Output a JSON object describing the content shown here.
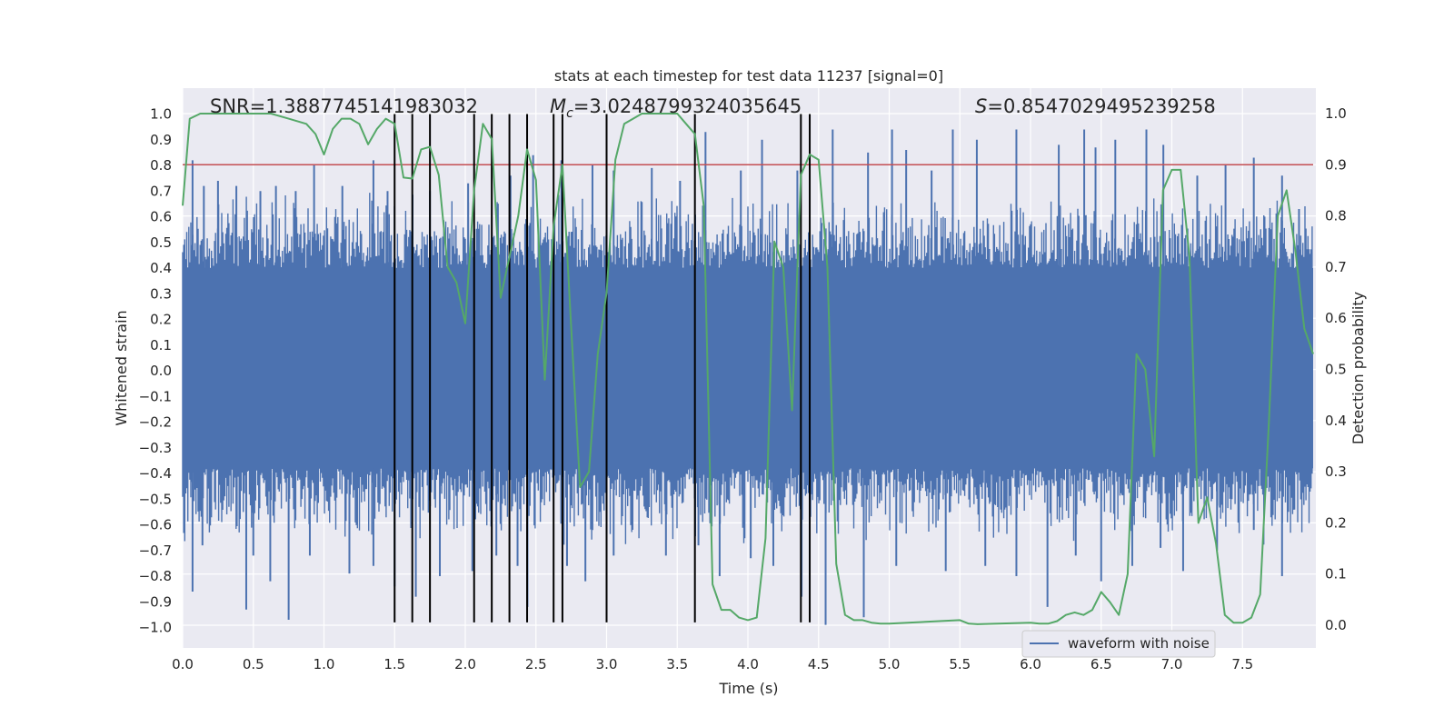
{
  "chart_data": {
    "type": "line",
    "title": "stats at each timestep for test data 11237 [signal=0]",
    "xlabel": "Time (s)",
    "ylabel": "Whitened strain",
    "y2label": "Detection probability",
    "xlim": [
      0.0,
      8.0
    ],
    "ylim": [
      -1.08,
      1.1
    ],
    "y2lim": [
      -0.048,
      1.048
    ],
    "x_ticks": [
      0.0,
      0.5,
      1.0,
      1.5,
      2.0,
      2.5,
      3.0,
      3.5,
      4.0,
      4.5,
      5.0,
      5.5,
      6.0,
      6.5,
      7.0,
      7.5
    ],
    "x_tick_labels": [
      "0.0",
      "0.5",
      "1.0",
      "1.5",
      "2.0",
      "2.5",
      "3.0",
      "3.5",
      "4.0",
      "4.5",
      "5.0",
      "5.5",
      "6.0",
      "6.5",
      "7.0",
      "7.5"
    ],
    "y_ticks": [
      1.0,
      0.9,
      0.8,
      0.7,
      0.6,
      0.5,
      0.4,
      0.3,
      0.2,
      0.1,
      0.0,
      -0.1,
      -0.2,
      -0.3,
      -0.4,
      -0.5,
      -0.6,
      -0.7,
      -0.8,
      -0.9,
      -1.0
    ],
    "y_tick_labels": [
      "1.0",
      "0.9",
      "0.8",
      "0.7",
      "0.6",
      "0.5",
      "0.4",
      "0.3",
      "0.2",
      "0.1",
      "0.0",
      "−0.1",
      "−0.2",
      "−0.3",
      "−0.4",
      "−0.5",
      "−0.6",
      "−0.7",
      "−0.8",
      "−0.9",
      "−1.0"
    ],
    "y2_ticks": [
      1.0,
      0.9,
      0.8,
      0.7,
      0.6,
      0.5,
      0.4,
      0.3,
      0.2,
      0.1,
      0.0
    ],
    "y2_tick_labels": [
      "1.0",
      "0.9",
      "0.8",
      "0.7",
      "0.6",
      "0.5",
      "0.4",
      "0.3",
      "0.2",
      "0.1",
      "0.0"
    ],
    "annotations": {
      "snr": "SNR=1.3887745141983032",
      "mc_symbol": "M",
      "mc_sub": "c",
      "mc_value": "=3.0248799324035645",
      "s_symbol": "S",
      "s_value": "=0.8547029495239258"
    },
    "threshold": {
      "y2": 0.9,
      "color": "#c44e52"
    },
    "vertical_lines": {
      "x": [
        1.5,
        1.625,
        1.75,
        2.0625,
        2.1875,
        2.3125,
        2.4375,
        2.625,
        2.6875,
        3.0,
        3.625,
        4.375,
        4.4375
      ],
      "ymin": -0.98,
      "ymax": 1.0,
      "color": "#000000"
    },
    "noise": {
      "name": "waveform with noise",
      "color": "#4c72b0",
      "core_lo": -0.38,
      "core_hi": 0.4,
      "samples": 1100,
      "spikes_up": [
        [
          0.07,
          0.82
        ],
        [
          0.15,
          0.72
        ],
        [
          0.25,
          0.74
        ],
        [
          0.38,
          0.72
        ],
        [
          0.55,
          0.7
        ],
        [
          0.66,
          0.72
        ],
        [
          0.8,
          0.7
        ],
        [
          0.93,
          0.8
        ],
        [
          1.13,
          0.72
        ],
        [
          1.35,
          0.82
        ],
        [
          1.45,
          0.7
        ],
        [
          1.75,
          0.7
        ],
        [
          2.02,
          0.73
        ],
        [
          2.32,
          0.76
        ],
        [
          2.48,
          0.84
        ],
        [
          2.68,
          0.82
        ],
        [
          2.9,
          0.8
        ],
        [
          3.05,
          0.78
        ],
        [
          3.32,
          0.79
        ],
        [
          3.52,
          0.74
        ],
        [
          3.7,
          0.93
        ],
        [
          3.95,
          0.78
        ],
        [
          4.1,
          0.9
        ],
        [
          4.35,
          0.78
        ],
        [
          4.6,
          0.94
        ],
        [
          4.85,
          0.85
        ],
        [
          5.02,
          0.94
        ],
        [
          5.12,
          0.86
        ],
        [
          5.3,
          0.78
        ],
        [
          5.45,
          0.94
        ],
        [
          5.62,
          0.9
        ],
        [
          5.9,
          0.94
        ],
        [
          6.2,
          0.88
        ],
        [
          6.38,
          0.94
        ],
        [
          6.46,
          0.87
        ],
        [
          6.6,
          0.9
        ],
        [
          6.82,
          0.94
        ],
        [
          6.94,
          0.88
        ],
        [
          7.18,
          0.76
        ],
        [
          7.38,
          0.8
        ],
        [
          7.58,
          0.83
        ],
        [
          7.78,
          0.76
        ],
        [
          7.9,
          0.63
        ]
      ],
      "spikes_down": [
        [
          0.07,
          -0.86
        ],
        [
          0.14,
          -0.68
        ],
        [
          0.45,
          -0.93
        ],
        [
          0.5,
          -0.72
        ],
        [
          0.62,
          -0.82
        ],
        [
          0.75,
          -0.97
        ],
        [
          0.9,
          -0.72
        ],
        [
          1.18,
          -0.79
        ],
        [
          1.35,
          -0.76
        ],
        [
          1.5,
          -0.84
        ],
        [
          1.65,
          -0.88
        ],
        [
          1.82,
          -0.8
        ],
        [
          2.05,
          -0.78
        ],
        [
          2.22,
          -0.72
        ],
        [
          2.37,
          -0.76
        ],
        [
          2.44,
          -0.92
        ],
        [
          2.72,
          -0.76
        ],
        [
          2.85,
          -0.82
        ],
        [
          3.05,
          -0.72
        ],
        [
          3.42,
          -0.72
        ],
        [
          3.65,
          -0.68
        ],
        [
          3.8,
          -0.8
        ],
        [
          4.02,
          -0.73
        ],
        [
          4.18,
          -0.76
        ],
        [
          4.38,
          -0.88
        ],
        [
          4.55,
          -0.99
        ],
        [
          4.82,
          -0.96
        ],
        [
          5.05,
          -0.76
        ],
        [
          5.4,
          -0.78
        ],
        [
          5.68,
          -0.76
        ],
        [
          5.9,
          -0.8
        ],
        [
          6.12,
          -0.92
        ],
        [
          6.32,
          -0.72
        ],
        [
          6.5,
          -0.82
        ],
        [
          6.72,
          -0.76
        ],
        [
          6.92,
          -0.69
        ],
        [
          7.08,
          -0.78
        ],
        [
          7.32,
          -0.7
        ],
        [
          7.58,
          -0.62
        ],
        [
          7.78,
          -0.8
        ]
      ]
    },
    "probability": {
      "name": "detection probability",
      "color": "#55a868",
      "points": [
        [
          0.0,
          0.82
        ],
        [
          0.05,
          0.99
        ],
        [
          0.125,
          1.0
        ],
        [
          0.25,
          1.0
        ],
        [
          0.375,
          1.0
        ],
        [
          0.5,
          1.0
        ],
        [
          0.625,
          1.0
        ],
        [
          0.75,
          0.99
        ],
        [
          0.875,
          0.98
        ],
        [
          0.94,
          0.96
        ],
        [
          1.0,
          0.92
        ],
        [
          1.0625,
          0.97
        ],
        [
          1.125,
          0.99
        ],
        [
          1.1875,
          0.99
        ],
        [
          1.25,
          0.98
        ],
        [
          1.3125,
          0.94
        ],
        [
          1.375,
          0.97
        ],
        [
          1.4375,
          0.99
        ],
        [
          1.5,
          0.98
        ],
        [
          1.5625,
          0.875
        ],
        [
          1.625,
          0.873
        ],
        [
          1.6875,
          0.93
        ],
        [
          1.75,
          0.935
        ],
        [
          1.8125,
          0.88
        ],
        [
          1.875,
          0.7
        ],
        [
          1.9375,
          0.67
        ],
        [
          2.0,
          0.59
        ],
        [
          2.0625,
          0.85
        ],
        [
          2.125,
          0.98
        ],
        [
          2.1875,
          0.95
        ],
        [
          2.25,
          0.64
        ],
        [
          2.3125,
          0.72
        ],
        [
          2.375,
          0.8
        ],
        [
          2.4375,
          0.93
        ],
        [
          2.5,
          0.87
        ],
        [
          2.5625,
          0.48
        ],
        [
          2.625,
          0.78
        ],
        [
          2.6875,
          0.9
        ],
        [
          2.75,
          0.58
        ],
        [
          2.8125,
          0.27
        ],
        [
          2.875,
          0.3
        ],
        [
          2.9375,
          0.53
        ],
        [
          3.0,
          0.65
        ],
        [
          3.0625,
          0.91
        ],
        [
          3.125,
          0.98
        ],
        [
          3.1875,
          0.99
        ],
        [
          3.25,
          1.0
        ],
        [
          3.3125,
          1.0
        ],
        [
          3.375,
          1.0
        ],
        [
          3.4375,
          1.0
        ],
        [
          3.5,
          1.0
        ],
        [
          3.5625,
          0.98
        ],
        [
          3.625,
          0.96
        ],
        [
          3.6875,
          0.82
        ],
        [
          3.75,
          0.08
        ],
        [
          3.8125,
          0.03
        ],
        [
          3.875,
          0.03
        ],
        [
          3.9375,
          0.015
        ],
        [
          4.0,
          0.01
        ],
        [
          4.0625,
          0.015
        ],
        [
          4.125,
          0.17
        ],
        [
          4.1875,
          0.75
        ],
        [
          4.25,
          0.7
        ],
        [
          4.3125,
          0.42
        ],
        [
          4.375,
          0.88
        ],
        [
          4.4375,
          0.92
        ],
        [
          4.5,
          0.91
        ],
        [
          4.5625,
          0.7
        ],
        [
          4.625,
          0.12
        ],
        [
          4.6875,
          0.02
        ],
        [
          4.75,
          0.01
        ],
        [
          4.8125,
          0.01
        ],
        [
          4.875,
          0.005
        ],
        [
          4.9375,
          0.003
        ],
        [
          5.0,
          0.003
        ],
        [
          5.5,
          0.01
        ],
        [
          5.5625,
          0.003
        ],
        [
          5.625,
          0.002
        ],
        [
          6.0,
          0.005
        ],
        [
          6.0625,
          0.003
        ],
        [
          6.125,
          0.003
        ],
        [
          6.1875,
          0.008
        ],
        [
          6.25,
          0.02
        ],
        [
          6.3125,
          0.025
        ],
        [
          6.375,
          0.02
        ],
        [
          6.4375,
          0.03
        ],
        [
          6.5,
          0.065
        ],
        [
          6.5625,
          0.045
        ],
        [
          6.625,
          0.02
        ],
        [
          6.6875,
          0.1
        ],
        [
          6.75,
          0.53
        ],
        [
          6.8125,
          0.5
        ],
        [
          6.875,
          0.33
        ],
        [
          6.9375,
          0.85
        ],
        [
          7.0,
          0.89
        ],
        [
          7.0625,
          0.89
        ],
        [
          7.125,
          0.72
        ],
        [
          7.1875,
          0.2
        ],
        [
          7.25,
          0.25
        ],
        [
          7.3125,
          0.16
        ],
        [
          7.375,
          0.02
        ],
        [
          7.4375,
          0.005
        ],
        [
          7.5,
          0.005
        ],
        [
          7.5625,
          0.015
        ],
        [
          7.625,
          0.06
        ],
        [
          7.6875,
          0.4
        ],
        [
          7.75,
          0.8
        ],
        [
          7.8125,
          0.85
        ],
        [
          7.875,
          0.73
        ],
        [
          7.9375,
          0.58
        ],
        [
          8.0,
          0.53
        ]
      ]
    },
    "legend": {
      "label": "waveform with noise",
      "position": "lower-right"
    }
  }
}
